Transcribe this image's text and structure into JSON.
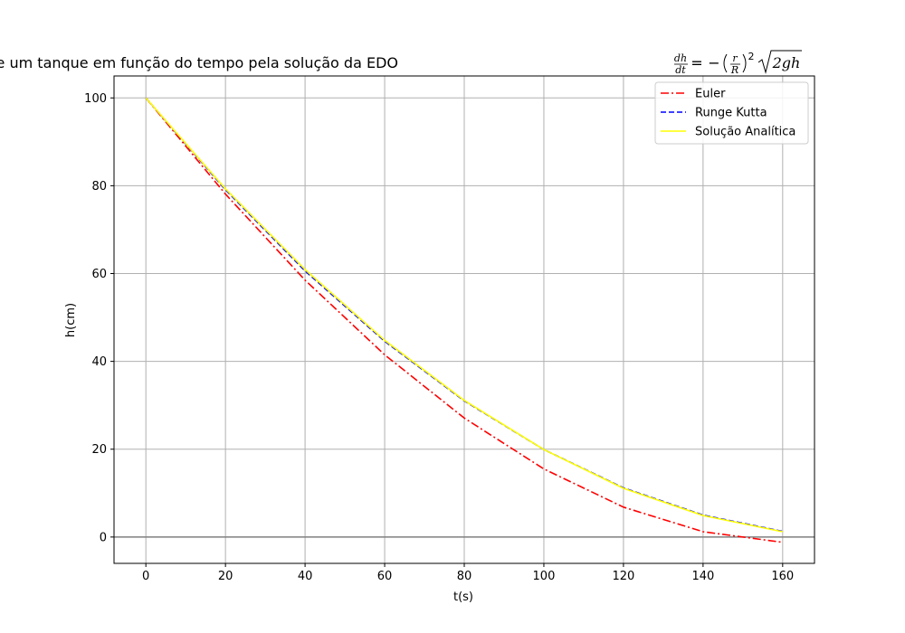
{
  "chart_data": {
    "type": "line",
    "title": "Altura da água de um tanque em função do tempo pela solução da EDO",
    "title_equation": {
      "lhs_num": "dh",
      "lhs_den": "dt",
      "equals": "=",
      "minus": "−",
      "frac_num": "r",
      "frac_den": "R",
      "exponent": "2",
      "sqrt_body": "2gh"
    },
    "xlabel": "t(s)",
    "ylabel": "h(cm)",
    "xlim": [
      -8,
      168
    ],
    "ylim": [
      -6,
      105
    ],
    "xticks": [
      0,
      20,
      40,
      60,
      80,
      100,
      120,
      140,
      160
    ],
    "yticks": [
      0,
      20,
      40,
      60,
      80,
      100
    ],
    "xtick_labels": [
      "0",
      "20",
      "40",
      "60",
      "80",
      "100",
      "120",
      "140",
      "160"
    ],
    "ytick_labels": [
      "0",
      "20",
      "40",
      "60",
      "80",
      "100"
    ],
    "grid": true,
    "zero_line": true,
    "legend_position": "upper-right",
    "series": [
      {
        "name": "Euler",
        "color": "#ff0000",
        "style": "dashdot",
        "x": [
          0,
          20,
          40,
          60,
          80,
          100,
          120,
          140,
          160
        ],
        "y": [
          100,
          78.1,
          58.5,
          41.5,
          27.1,
          15.5,
          6.8,
          1.2,
          -1.2
        ]
      },
      {
        "name": "Runge Kutta",
        "color": "#0000ff",
        "style": "dashed",
        "x": [
          0,
          20,
          40,
          60,
          80,
          100,
          120,
          140,
          160
        ],
        "y": [
          100,
          79.1,
          60.6,
          44.6,
          31.0,
          19.9,
          11.2,
          5.0,
          1.3
        ]
      },
      {
        "name": "Solução Analítica",
        "color": "#ffff00",
        "style": "solid",
        "x": [
          0,
          20,
          40,
          60,
          80,
          100,
          120,
          140,
          160
        ],
        "y": [
          100,
          79.3,
          60.9,
          44.8,
          31.1,
          19.9,
          11.1,
          4.9,
          1.2
        ]
      }
    ]
  }
}
